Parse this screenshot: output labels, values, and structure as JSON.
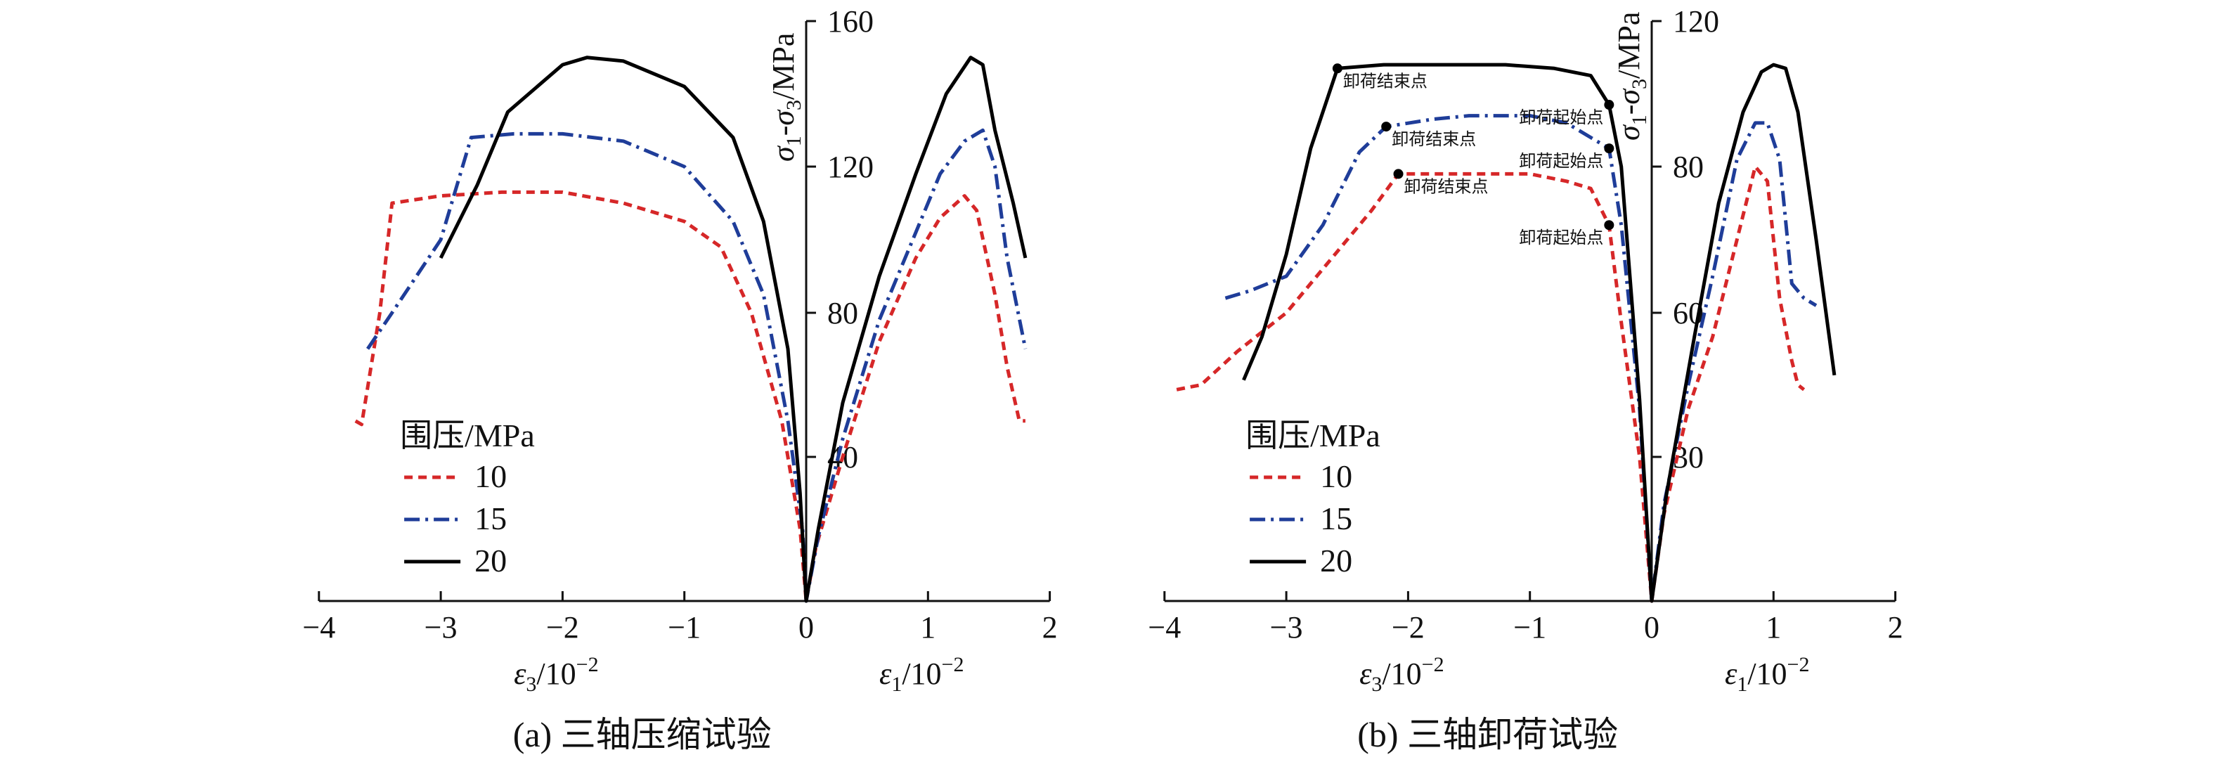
{
  "chart_data": [
    {
      "type": "line",
      "caption": "(a) 三轴压缩试验",
      "legend_title": "围压/MPa",
      "legend_placement": "bottom-left",
      "ylabel": "σ1-σ3/MPa",
      "xlabel_left": "ε3/10⁻²",
      "xlabel_right": "ε1/10⁻²",
      "x_ticks": [
        "−4",
        "−3",
        "−2",
        "−1",
        "0",
        "1",
        "2"
      ],
      "y_ticks": [
        "40",
        "80",
        "120",
        "160"
      ],
      "xlim": [
        -4.0,
        2.0
      ],
      "ylim": [
        0,
        160
      ],
      "grid": false,
      "series": [
        {
          "name": "10",
          "color": "#d62728",
          "dash": "dashed",
          "points": [
            [
              -3.7,
              50
            ],
            [
              -3.65,
              49
            ],
            [
              -3.5,
              80
            ],
            [
              -3.4,
              110
            ],
            [
              -3.0,
              112
            ],
            [
              -2.5,
              113
            ],
            [
              -2.0,
              113
            ],
            [
              -1.5,
              110
            ],
            [
              -1.0,
              105
            ],
            [
              -0.7,
              98
            ],
            [
              -0.45,
              80
            ],
            [
              -0.2,
              50
            ],
            [
              -0.05,
              20
            ],
            [
              0,
              0
            ],
            [
              0.08,
              15
            ],
            [
              0.3,
              40
            ],
            [
              0.6,
              72
            ],
            [
              0.9,
              95
            ],
            [
              1.1,
              106
            ],
            [
              1.3,
              112
            ],
            [
              1.4,
              108
            ],
            [
              1.55,
              85
            ],
            [
              1.65,
              65
            ],
            [
              1.75,
              50
            ],
            [
              1.8,
              50
            ]
          ]
        },
        {
          "name": "15",
          "color": "#1f3d99",
          "dash": "dashdot",
          "points": [
            [
              -3.6,
              70
            ],
            [
              -3.4,
              80
            ],
            [
              -3.0,
              100
            ],
            [
              -2.75,
              128
            ],
            [
              -2.4,
              129
            ],
            [
              -2.0,
              129
            ],
            [
              -1.5,
              127
            ],
            [
              -1.0,
              120
            ],
            [
              -0.6,
              105
            ],
            [
              -0.35,
              85
            ],
            [
              -0.15,
              50
            ],
            [
              -0.03,
              20
            ],
            [
              0,
              0
            ],
            [
              0.1,
              18
            ],
            [
              0.3,
              45
            ],
            [
              0.6,
              78
            ],
            [
              0.9,
              102
            ],
            [
              1.1,
              118
            ],
            [
              1.3,
              127
            ],
            [
              1.45,
              130
            ],
            [
              1.55,
              120
            ],
            [
              1.65,
              95
            ],
            [
              1.8,
              70
            ]
          ]
        },
        {
          "name": "20",
          "color": "#000000",
          "dash": "solid",
          "points": [
            [
              -3.0,
              95
            ],
            [
              -2.7,
              115
            ],
            [
              -2.45,
              135
            ],
            [
              -2.0,
              148
            ],
            [
              -1.8,
              150
            ],
            [
              -1.5,
              149
            ],
            [
              -1.0,
              142
            ],
            [
              -0.6,
              128
            ],
            [
              -0.35,
              105
            ],
            [
              -0.15,
              70
            ],
            [
              -0.05,
              30
            ],
            [
              0,
              0
            ],
            [
              0.1,
              20
            ],
            [
              0.3,
              55
            ],
            [
              0.6,
              90
            ],
            [
              0.9,
              118
            ],
            [
              1.15,
              140
            ],
            [
              1.35,
              150
            ],
            [
              1.45,
              148
            ],
            [
              1.55,
              130
            ],
            [
              1.7,
              110
            ],
            [
              1.8,
              95
            ]
          ]
        }
      ]
    },
    {
      "type": "line",
      "caption": "(b) 三轴卸荷试验",
      "legend_title": "围压/MPa",
      "legend_placement": "bottom-left",
      "ylabel": "σ1-σ3/MPa",
      "xlabel_left": "ε3/10⁻²",
      "xlabel_right": "ε1/10⁻²",
      "x_ticks": [
        "−4",
        "−3",
        "−2",
        "−1",
        "0",
        "1",
        "2"
      ],
      "y_ticks": [
        "30",
        "60",
        "80",
        "120"
      ],
      "xlim": [
        -4.0,
        2.0
      ],
      "ylim": [
        0,
        120
      ],
      "grid": false,
      "annotations": [
        {
          "text": "卸荷结束点",
          "x": -2.58,
          "y": 107
        },
        {
          "text": "卸荷起始点",
          "x": -0.35,
          "y": 97
        },
        {
          "text": "卸荷结束点",
          "x": -2.18,
          "y": 91
        },
        {
          "text": "卸荷起始点",
          "x": -0.35,
          "y": 85
        },
        {
          "text": "卸荷结束点",
          "x": -2.08,
          "y": 79
        },
        {
          "text": "卸荷起始点",
          "x": -0.35,
          "y": 72
        }
      ],
      "series": [
        {
          "name": "10",
          "color": "#d62728",
          "dash": "dashed",
          "points": [
            [
              -3.9,
              44
            ],
            [
              -3.7,
              45
            ],
            [
              -3.4,
              52
            ],
            [
              -3.0,
              60
            ],
            [
              -2.6,
              68
            ],
            [
              -2.3,
              74
            ],
            [
              -2.08,
              79
            ],
            [
              -1.5,
              79
            ],
            [
              -1.0,
              79
            ],
            [
              -0.7,
              78
            ],
            [
              -0.5,
              77
            ],
            [
              -0.35,
              72
            ],
            [
              -0.25,
              58
            ],
            [
              -0.1,
              30
            ],
            [
              0,
              0
            ],
            [
              0.1,
              18
            ],
            [
              0.3,
              40
            ],
            [
              0.5,
              55
            ],
            [
              0.7,
              70
            ],
            [
              0.85,
              80
            ],
            [
              0.95,
              78
            ],
            [
              1.05,
              62
            ],
            [
              1.15,
              50
            ],
            [
              1.2,
              45
            ],
            [
              1.25,
              44
            ]
          ]
        },
        {
          "name": "15",
          "color": "#1f3d99",
          "dash": "dashdot",
          "points": [
            [
              -3.5,
              62
            ],
            [
              -3.3,
              63
            ],
            [
              -3.0,
              65
            ],
            [
              -2.7,
              72
            ],
            [
              -2.4,
              84
            ],
            [
              -2.18,
              91
            ],
            [
              -1.8,
              93
            ],
            [
              -1.5,
              94
            ],
            [
              -1.0,
              94
            ],
            [
              -0.7,
              92
            ],
            [
              -0.5,
              88
            ],
            [
              -0.35,
              85
            ],
            [
              -0.25,
              72
            ],
            [
              -0.1,
              40
            ],
            [
              0,
              0
            ],
            [
              0.1,
              20
            ],
            [
              0.3,
              45
            ],
            [
              0.5,
              65
            ],
            [
              0.7,
              82
            ],
            [
              0.85,
              92
            ],
            [
              0.95,
              92
            ],
            [
              1.05,
              82
            ],
            [
              1.15,
              64
            ],
            [
              1.25,
              62
            ],
            [
              1.35,
              61
            ]
          ]
        },
        {
          "name": "20",
          "color": "#000000",
          "dash": "solid",
          "points": [
            [
              -3.35,
              46
            ],
            [
              -3.2,
              55
            ],
            [
              -3.0,
              68
            ],
            [
              -2.8,
              85
            ],
            [
              -2.58,
              107
            ],
            [
              -2.2,
              108
            ],
            [
              -1.8,
              108
            ],
            [
              -1.2,
              108
            ],
            [
              -0.8,
              107
            ],
            [
              -0.5,
              105
            ],
            [
              -0.35,
              97
            ],
            [
              -0.25,
              80
            ],
            [
              -0.1,
              42
            ],
            [
              0,
              0
            ],
            [
              0.12,
              22
            ],
            [
              0.35,
              55
            ],
            [
              0.55,
              75
            ],
            [
              0.75,
              95
            ],
            [
              0.9,
              106
            ],
            [
              1.0,
              108
            ],
            [
              1.1,
              107
            ],
            [
              1.2,
              95
            ],
            [
              1.35,
              70
            ],
            [
              1.5,
              47
            ]
          ]
        }
      ]
    }
  ]
}
